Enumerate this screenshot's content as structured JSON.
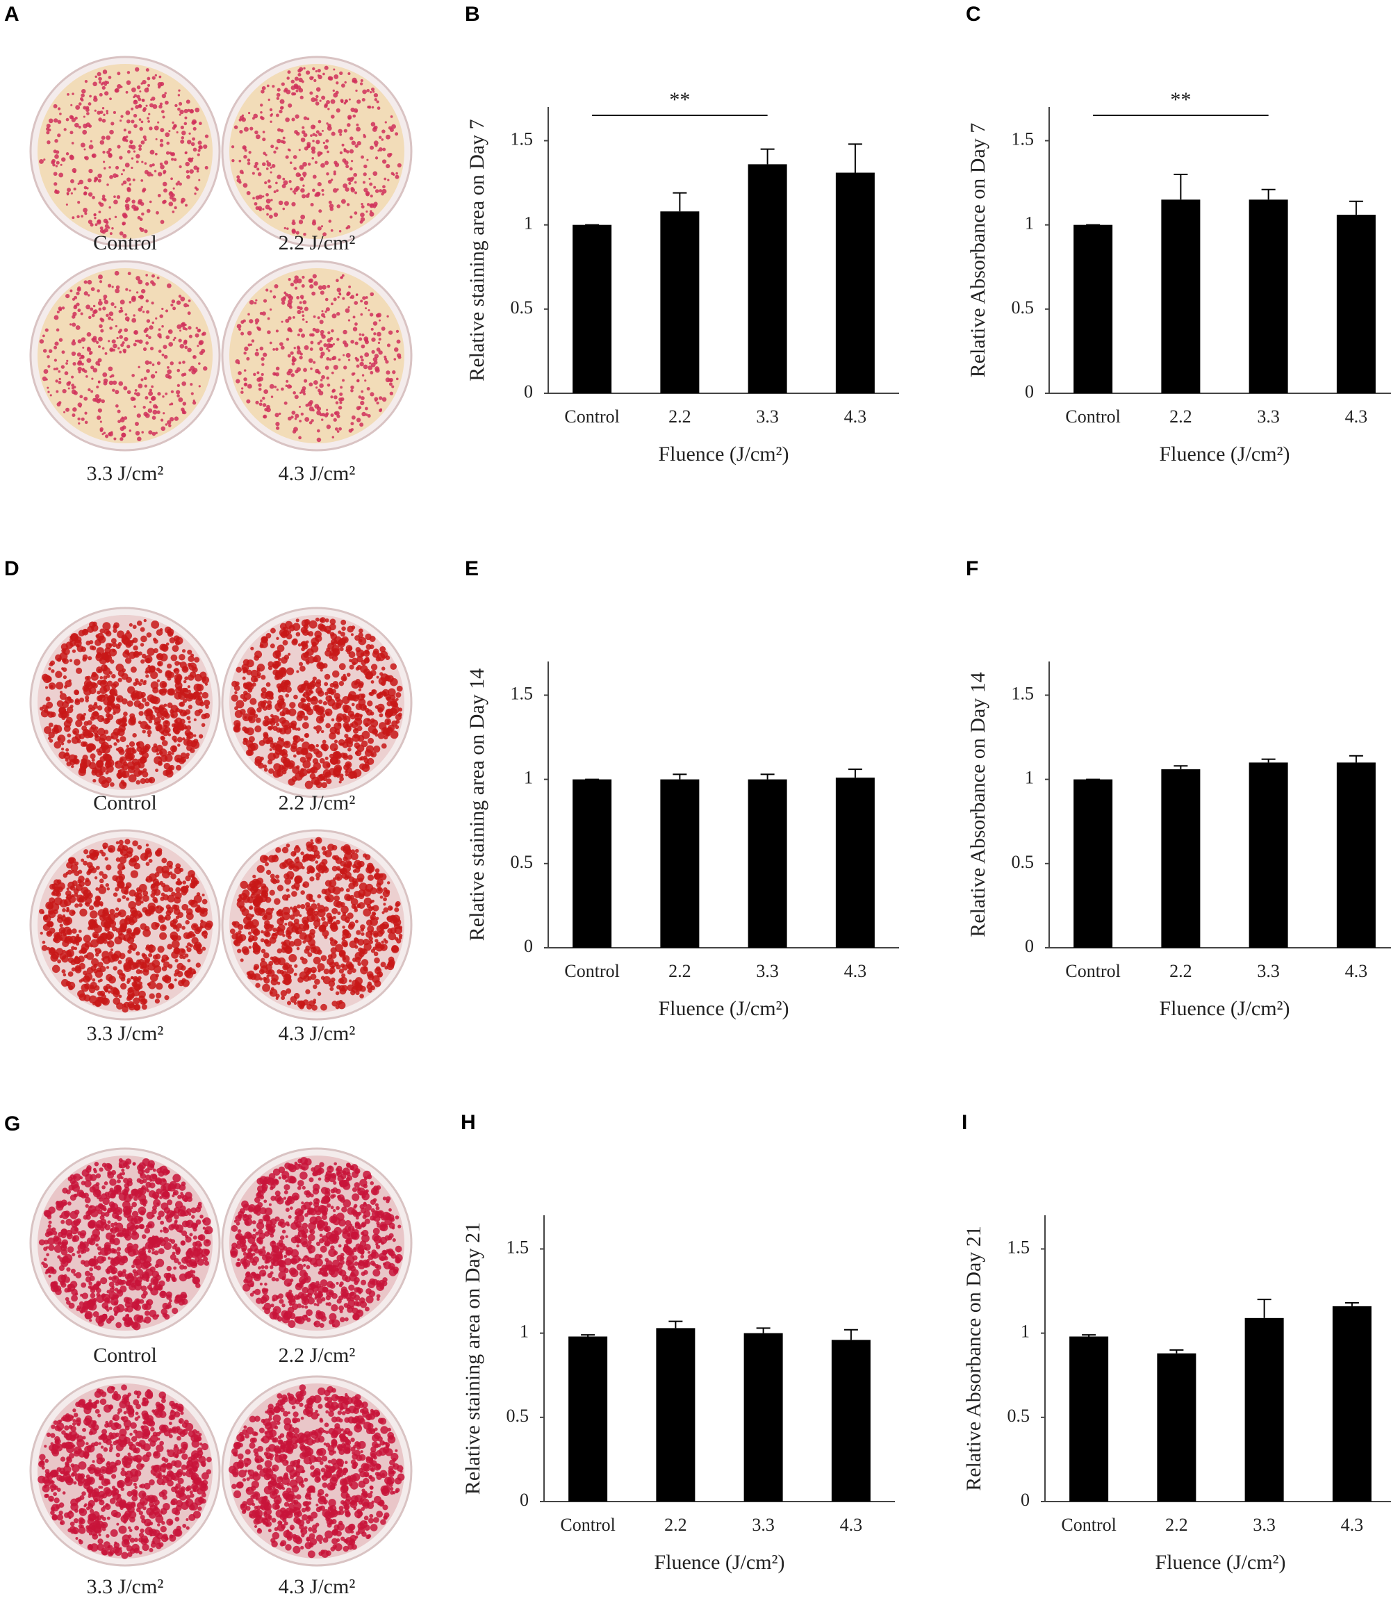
{
  "dish_panels": [
    {
      "label": "A",
      "captions": [
        "Control",
        "2.2 J/cm²",
        "3.3 J/cm²",
        "4.3 J/cm²"
      ]
    },
    {
      "label": "D",
      "captions": [
        "Control",
        "2.2 J/cm²",
        "3.3 J/cm²",
        "4.3 J/cm²"
      ]
    },
    {
      "label": "G",
      "captions": [
        "Control",
        "2.2 J/cm²",
        "3.3 J/cm²",
        "4.3 J/cm²"
      ]
    }
  ],
  "chart_data": [
    {
      "type": "bar",
      "label": "B",
      "ylabel": "Relative staining area on Day 7",
      "xlabel": "Fluence (J/cm²)",
      "categories": [
        "Control",
        "2.2",
        "3.3",
        "4.3"
      ],
      "values": [
        1,
        1.08,
        1.36,
        1.31
      ],
      "errors": [
        0,
        0.11,
        0.09,
        0.17
      ],
      "color": "#000000",
      "ylim": [
        0,
        1.7
      ],
      "yticks": [
        0,
        0.5,
        1,
        1.5
      ],
      "annotations": [
        {
          "text": "**"
        }
      ]
    },
    {
      "type": "bar",
      "label": "C",
      "ylabel": "Relative Absorbance on Day 7",
      "xlabel": "Fluence (J/cm²)",
      "categories": [
        "Control",
        "2.2",
        "3.3",
        "4.3"
      ],
      "values": [
        1,
        1.15,
        1.15,
        1.06
      ],
      "errors": [
        0,
        0.15,
        0.06,
        0.08
      ],
      "color": "#000000",
      "ylim": [
        0,
        1.7
      ],
      "yticks": [
        0,
        0.5,
        1,
        1.5
      ],
      "annotations": [
        {
          "text": "**"
        }
      ]
    },
    {
      "type": "bar",
      "label": "E",
      "ylabel": "Relative staining area on Day 14",
      "xlabel": "Fluence (J/cm²)",
      "categories": [
        "Control",
        "2.2",
        "3.3",
        "4.3"
      ],
      "values": [
        1,
        1.0,
        1.0,
        1.01
      ],
      "errors": [
        0,
        0.03,
        0.03,
        0.05
      ],
      "color": "#000000",
      "ylim": [
        0,
        1.7
      ],
      "yticks": [
        0,
        0.5,
        1,
        1.5
      ]
    },
    {
      "type": "bar",
      "label": "F",
      "ylabel": "Relative Absorbance on Day 14",
      "xlabel": "Fluence (J/cm²)",
      "categories": [
        "Control",
        "2.2",
        "3.3",
        "4.3"
      ],
      "values": [
        1,
        1.06,
        1.1,
        1.1
      ],
      "errors": [
        0,
        0.02,
        0.02,
        0.04
      ],
      "color": "#000000",
      "ylim": [
        0,
        1.7
      ],
      "yticks": [
        0,
        0.5,
        1,
        1.5
      ]
    },
    {
      "type": "bar",
      "label": "H",
      "ylabel": "Relative staining area on Day 21",
      "xlabel": "Fluence (J/cm²)",
      "categories": [
        "Control",
        "2.2",
        "3.3",
        "4.3"
      ],
      "values": [
        0.98,
        1.03,
        1.0,
        0.96
      ],
      "errors": [
        0.01,
        0.04,
        0.03,
        0.06
      ],
      "color": "#000000",
      "ylim": [
        0,
        1.7
      ],
      "yticks": [
        0,
        0.5,
        1,
        1.5
      ]
    },
    {
      "type": "bar",
      "label": "I",
      "ylabel": "Relative Absorbance on Day 21",
      "xlabel": "Fluence (J/cm²)",
      "categories": [
        "Control",
        "2.2",
        "3.3",
        "4.3"
      ],
      "values": [
        0.98,
        0.88,
        1.09,
        1.16
      ],
      "errors": [
        0.01,
        0.02,
        0.11,
        0.02
      ],
      "color": "#000000",
      "ylim": [
        0,
        1.7
      ],
      "yticks": [
        0,
        0.5,
        1,
        1.5
      ]
    }
  ]
}
